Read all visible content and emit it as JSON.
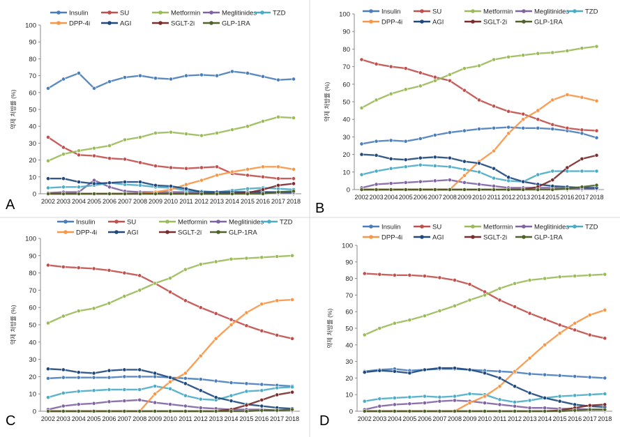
{
  "chart_data": [
    {
      "type": "line",
      "panel_label": "A",
      "ylabel": "약제 처방률 (%)",
      "ylim": [
        0,
        100
      ],
      "yticks": [
        0,
        10,
        20,
        30,
        40,
        50,
        60,
        70,
        80,
        90,
        100
      ],
      "x": [
        "2002",
        "2003",
        "2004",
        "2005",
        "2006",
        "2007",
        "2008",
        "2009",
        "2010",
        "2011",
        "2012",
        "2013",
        "2014",
        "2015",
        "2016",
        "2017",
        "2018"
      ],
      "legend_position": "top",
      "series": [
        {
          "name": "Insulin",
          "color": "#4a7ebb",
          "values": [
            62.5,
            68,
            71.5,
            62.5,
            66.5,
            69,
            70,
            68.5,
            68,
            70,
            70.5,
            70,
            72.5,
            71.5,
            69.5,
            67.5,
            68
          ]
        },
        {
          "name": "SU",
          "color": "#c0504d",
          "values": [
            33.5,
            27.5,
            23,
            22.5,
            21,
            20.5,
            18.5,
            16.5,
            15.5,
            15,
            15.5,
            16,
            12,
            11,
            10,
            9,
            9
          ]
        },
        {
          "name": "Metformin",
          "color": "#9bbb59",
          "values": [
            19.5,
            23.5,
            25.5,
            27,
            28.5,
            32,
            33.5,
            36,
            36.5,
            35.5,
            34.5,
            36,
            38,
            40,
            43,
            45.5,
            45
          ]
        },
        {
          "name": "Meglitinides",
          "color": "#8064a2",
          "values": [
            0.5,
            1,
            1,
            8,
            4,
            1.5,
            1,
            1,
            1,
            1,
            1,
            1,
            1,
            1,
            1,
            0.5,
            0.5
          ]
        },
        {
          "name": "TZD",
          "color": "#4bacc6",
          "values": [
            3.5,
            4,
            4,
            5,
            6.5,
            5.5,
            5,
            4,
            3.5,
            2,
            1.5,
            1,
            2,
            3,
            3.5,
            3,
            2.5
          ]
        },
        {
          "name": "DPP-4i",
          "color": "#f79646",
          "values": [
            0,
            0,
            0,
            0,
            0,
            0,
            0,
            1,
            2.5,
            5.5,
            8,
            11,
            13,
            14.5,
            16,
            16,
            14.5
          ]
        },
        {
          "name": "AGI",
          "color": "#1f497d",
          "values": [
            9,
            9,
            7,
            6,
            6.5,
            7,
            7,
            5,
            4.5,
            3,
            1,
            1,
            1,
            1,
            1,
            1,
            1
          ]
        },
        {
          "name": "SGLT-2i",
          "color": "#7b2c2c",
          "values": [
            0,
            0,
            0,
            0,
            0,
            0,
            0,
            0,
            0,
            0,
            0,
            0,
            0,
            0.5,
            2.5,
            5,
            6
          ]
        },
        {
          "name": "GLP-1RA",
          "color": "#4f6228",
          "values": [
            0,
            0,
            0,
            0,
            0,
            0,
            0,
            0,
            0,
            0,
            0,
            0,
            0,
            0,
            0,
            1,
            1.5
          ]
        }
      ]
    },
    {
      "type": "line",
      "panel_label": "B",
      "ylabel": "약제 처방률 (%)",
      "ylim": [
        0,
        100
      ],
      "yticks": [
        0,
        10,
        20,
        30,
        40,
        50,
        60,
        70,
        80,
        90,
        100
      ],
      "x": [
        "2002",
        "2003",
        "2004",
        "2005",
        "2006",
        "2007",
        "2008",
        "2009",
        "2010",
        "2011",
        "2012",
        "2013",
        "2014",
        "2015",
        "2016",
        "2017",
        "2018"
      ],
      "legend_position": "top",
      "series": [
        {
          "name": "Insulin",
          "color": "#4a7ebb",
          "values": [
            26,
            27.5,
            28,
            27.5,
            29,
            31,
            32.5,
            33.5,
            34.5,
            35,
            35.5,
            35,
            35,
            34.5,
            33.5,
            32,
            29.5
          ]
        },
        {
          "name": "SU",
          "color": "#c0504d",
          "values": [
            74,
            71.5,
            70,
            69,
            66.5,
            64,
            62,
            56.5,
            51,
            47.5,
            44.5,
            43,
            40,
            37,
            35,
            34,
            33.5
          ]
        },
        {
          "name": "Metformin",
          "color": "#9bbb59",
          "values": [
            46.5,
            51,
            54.5,
            57,
            59,
            62,
            65.5,
            69,
            70.5,
            74,
            75.5,
            76.5,
            77.5,
            78,
            79,
            80.5,
            81.5
          ]
        },
        {
          "name": "Meglitinides",
          "color": "#8064a2",
          "values": [
            1,
            3,
            3.5,
            4,
            4.5,
            5,
            5.5,
            4,
            3,
            2,
            1,
            1,
            1,
            1,
            0.5,
            0.5,
            0.5
          ]
        },
        {
          "name": "TZD",
          "color": "#4bacc6",
          "values": [
            8.5,
            10.5,
            12,
            13,
            14,
            13.5,
            13,
            11.5,
            10,
            6.5,
            5,
            4.5,
            8.5,
            10.5,
            10.5,
            10.5,
            10.5
          ]
        },
        {
          "name": "DPP-4i",
          "color": "#f79646",
          "values": [
            0,
            0,
            0,
            0,
            0,
            0,
            0,
            8,
            16,
            22,
            32,
            40,
            45,
            51,
            54,
            52.5,
            50.5
          ]
        },
        {
          "name": "AGI",
          "color": "#1f497d",
          "values": [
            20,
            19.5,
            17.5,
            17,
            18,
            18.5,
            18,
            16,
            15,
            12,
            7,
            4.5,
            3,
            2,
            1.5,
            1,
            1
          ]
        },
        {
          "name": "SGLT-2i",
          "color": "#7b2c2c",
          "values": [
            0,
            0,
            0,
            0,
            0,
            0,
            0,
            0,
            0,
            0,
            0,
            0,
            1.5,
            5.5,
            12.5,
            17.5,
            19.5
          ]
        },
        {
          "name": "GLP-1RA",
          "color": "#4f6228",
          "values": [
            0,
            0,
            0,
            0,
            0,
            0,
            0,
            0,
            0,
            0,
            0,
            0,
            0,
            0,
            0.5,
            1.5,
            2.5
          ]
        }
      ]
    },
    {
      "type": "line",
      "panel_label": "C",
      "ylabel": "약제 처방률 (%)",
      "ylim": [
        0,
        100
      ],
      "yticks": [
        0,
        10,
        20,
        30,
        40,
        50,
        60,
        70,
        80,
        90,
        100
      ],
      "x": [
        "2002",
        "2003",
        "2004",
        "2005",
        "2006",
        "2007",
        "2008",
        "2009",
        "2010",
        "2011",
        "2012",
        "2013",
        "2014",
        "2015",
        "2016",
        "2017",
        "2018"
      ],
      "legend_position": "top",
      "series": [
        {
          "name": "Insulin",
          "color": "#4a7ebb",
          "values": [
            19,
            19.5,
            19.5,
            19.5,
            19.5,
            20,
            20,
            20,
            19.5,
            19,
            18.5,
            17.5,
            16.5,
            16,
            15.5,
            15,
            14.5
          ]
        },
        {
          "name": "SU",
          "color": "#c0504d",
          "values": [
            84.5,
            83.5,
            83,
            82.5,
            81.5,
            80,
            78.5,
            74,
            69,
            64,
            60,
            56.5,
            53,
            49.5,
            46.5,
            44,
            42
          ]
        },
        {
          "name": "Metformin",
          "color": "#9bbb59",
          "values": [
            51,
            55,
            58,
            59.5,
            62.5,
            66.5,
            70,
            74,
            77,
            82,
            85,
            86.5,
            88,
            88.5,
            89,
            89.5,
            90
          ]
        },
        {
          "name": "Meglitinides",
          "color": "#8064a2",
          "values": [
            1,
            3,
            4,
            4.5,
            5.5,
            6,
            6.5,
            5,
            4,
            3,
            2,
            1.5,
            1,
            1,
            1,
            0.5,
            0.5
          ]
        },
        {
          "name": "TZD",
          "color": "#4bacc6",
          "values": [
            8,
            10.5,
            11.5,
            12,
            12.5,
            12.5,
            12.5,
            14.5,
            13,
            9,
            7,
            6.5,
            9,
            11.5,
            12,
            13.5,
            14
          ]
        },
        {
          "name": "DPP-4i",
          "color": "#f79646",
          "values": [
            0,
            0,
            0,
            0,
            0,
            0,
            0,
            10,
            17,
            22,
            32,
            42,
            50,
            57,
            62,
            64,
            64.5
          ]
        },
        {
          "name": "AGI",
          "color": "#1f497d",
          "values": [
            24.5,
            24,
            22.5,
            22,
            23.5,
            24,
            24,
            22,
            19.5,
            16,
            12,
            8,
            6,
            4,
            3,
            2,
            1.5
          ]
        },
        {
          "name": "SGLT-2i",
          "color": "#7b2c2c",
          "values": [
            0,
            0,
            0,
            0,
            0,
            0,
            0,
            0,
            0,
            0,
            0,
            0,
            1,
            3.5,
            6.5,
            9.5,
            11
          ]
        },
        {
          "name": "GLP-1RA",
          "color": "#4f6228",
          "values": [
            0,
            0,
            0,
            0,
            0,
            0,
            0,
            0,
            0,
            0,
            0,
            0,
            0,
            0,
            0.5,
            0.5,
            1
          ]
        }
      ]
    },
    {
      "type": "line",
      "panel_label": "D",
      "ylabel": "약제 처방률 (%)",
      "ylim": [
        0,
        100
      ],
      "yticks": [
        0,
        10,
        20,
        30,
        40,
        50,
        60,
        70,
        80,
        90,
        100
      ],
      "x": [
        "2002",
        "2003",
        "2004",
        "2005",
        "2006",
        "2007",
        "2008",
        "2009",
        "2010",
        "2011",
        "2012",
        "2013",
        "2014",
        "2015",
        "2016",
        "2017",
        "2018"
      ],
      "legend_position": "top",
      "series": [
        {
          "name": "Insulin",
          "color": "#4a7ebb",
          "values": [
            24,
            25,
            25.5,
            24.5,
            25,
            25.5,
            25.5,
            25,
            24.5,
            24,
            23.5,
            22.5,
            22,
            21.5,
            21,
            20.5,
            20
          ]
        },
        {
          "name": "SU",
          "color": "#c0504d",
          "values": [
            83,
            82.5,
            82,
            82,
            81.5,
            80.5,
            79,
            76.5,
            72,
            67,
            63,
            59,
            55.5,
            52,
            49,
            46,
            44
          ]
        },
        {
          "name": "Metformin",
          "color": "#9bbb59",
          "values": [
            46,
            50,
            53,
            55,
            57.5,
            60.5,
            63.5,
            67,
            70,
            74,
            77,
            79,
            80,
            81,
            81.5,
            82,
            82.5
          ]
        },
        {
          "name": "Meglitinides",
          "color": "#8064a2",
          "values": [
            1,
            3,
            4,
            4.5,
            5,
            6,
            6.5,
            6,
            5,
            4,
            3,
            2,
            2,
            1.5,
            1.5,
            1,
            1
          ]
        },
        {
          "name": "TZD",
          "color": "#4bacc6",
          "values": [
            6,
            7.5,
            8,
            8.5,
            9,
            8.5,
            9,
            10.5,
            10,
            7,
            5.5,
            6.5,
            8,
            9,
            9.5,
            10,
            10.5
          ]
        },
        {
          "name": "DPP-4i",
          "color": "#f79646",
          "values": [
            0,
            0,
            0,
            0,
            0,
            0,
            0,
            5,
            9,
            15,
            24,
            32,
            40,
            47,
            53,
            58,
            61
          ]
        },
        {
          "name": "AGI",
          "color": "#1f497d",
          "values": [
            23.5,
            24.5,
            24,
            23,
            25,
            26,
            26,
            25,
            23,
            20,
            15,
            11,
            8,
            6,
            4,
            3,
            2.5
          ]
        },
        {
          "name": "SGLT-2i",
          "color": "#7b2c2c",
          "values": [
            0,
            0,
            0,
            0,
            0,
            0,
            0,
            0,
            0,
            0,
            0,
            0,
            0,
            0.5,
            2,
            3.5,
            4
          ]
        },
        {
          "name": "GLP-1RA",
          "color": "#4f6228",
          "values": [
            0,
            0,
            0,
            0,
            0,
            0,
            0,
            0,
            0,
            0,
            0,
            0,
            0,
            0,
            0.5,
            1,
            1
          ]
        }
      ]
    }
  ]
}
